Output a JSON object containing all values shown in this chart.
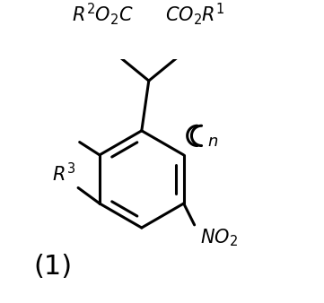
{
  "bg_color": "#ffffff",
  "label_color": "#000000",
  "fig_width": 3.61,
  "fig_height": 3.38,
  "dpi": 100,
  "compound_label": "(1)",
  "compound_label_fontsize": 22,
  "lw": 2.2
}
